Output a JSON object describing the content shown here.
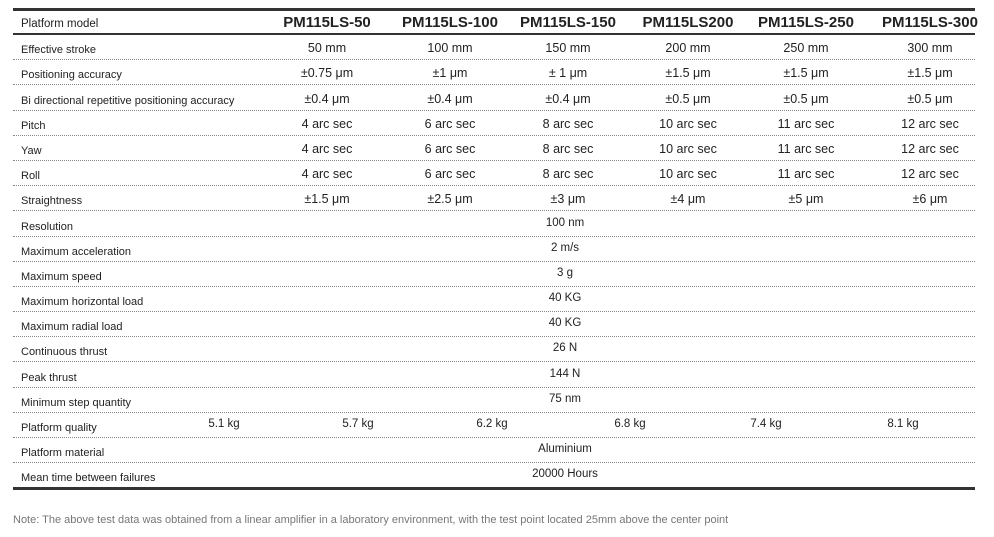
{
  "header": {
    "label": "Platform model",
    "models": [
      "PM115LS-50",
      "PM115LS-100",
      "PM115LS-150",
      "PM115LS200",
      "PM115LS-250",
      "PM115LS-300"
    ]
  },
  "rows": [
    {
      "label": "Effective stroke",
      "values": [
        "50 mm",
        "100 mm",
        "150 mm",
        "200 mm",
        "250 mm",
        "300 mm"
      ]
    },
    {
      "label": "Positioning accuracy",
      "values": [
        "±0.75 μm",
        "±1 μm",
        "± 1 μm",
        "±1.5 μm",
        "±1.5 μm",
        "±1.5 μm"
      ]
    },
    {
      "label": "Bi directional repetitive positioning accuracy",
      "values": [
        "±0.4 μm",
        "±0.4 μm",
        "±0.4 μm",
        "±0.5 μm",
        "±0.5 μm",
        "±0.5 μm"
      ]
    },
    {
      "label": "Pitch",
      "values": [
        "4 arc sec",
        "6 arc sec",
        "8 arc sec",
        "10 arc sec",
        "11 arc sec",
        "12 arc sec"
      ]
    },
    {
      "label": "Yaw",
      "values": [
        "4 arc sec",
        "6 arc sec",
        "8 arc sec",
        "10 arc sec",
        "11 arc sec",
        "12 arc sec"
      ]
    },
    {
      "label": "Roll",
      "values": [
        "4 arc sec",
        "6 arc sec",
        "8 arc sec",
        "10 arc sec",
        "11 arc sec",
        "12 arc sec"
      ]
    },
    {
      "label": "Straightness",
      "values": [
        "±1.5 μm",
        "±2.5 μm",
        "±3 μm",
        "±4 μm",
        "±5 μm",
        "±6 μm"
      ]
    }
  ],
  "merged_rows": [
    {
      "label": "Resolution",
      "value": "100 nm"
    },
    {
      "label": "Maximum acceleration",
      "value": "2 m/s"
    },
    {
      "label": "Maximum speed",
      "value": "3 g"
    },
    {
      "label": "Maximum horizontal load",
      "value": "40 KG"
    },
    {
      "label": "Maximum radial load",
      "value": "40 KG"
    },
    {
      "label": "Continuous thrust",
      "value": "26 N"
    },
    {
      "label": "Peak thrust",
      "value": "144 N"
    },
    {
      "label": "Minimum step quantity",
      "value": "75 nm"
    }
  ],
  "quality": {
    "label": "Platform quality",
    "values": [
      "5.1 kg",
      "5.7 kg",
      "6.2 kg",
      "6.8 kg",
      "7.4 kg",
      "8.1 kg"
    ]
  },
  "tail_rows": [
    {
      "label": "Platform material",
      "value": "Aluminium"
    },
    {
      "label": "Mean time between failures",
      "value": "20000 Hours"
    }
  ],
  "note": "Note: The above test data was obtained from a linear amplifier in a laboratory environment, with the test point located 25mm above the center point"
}
